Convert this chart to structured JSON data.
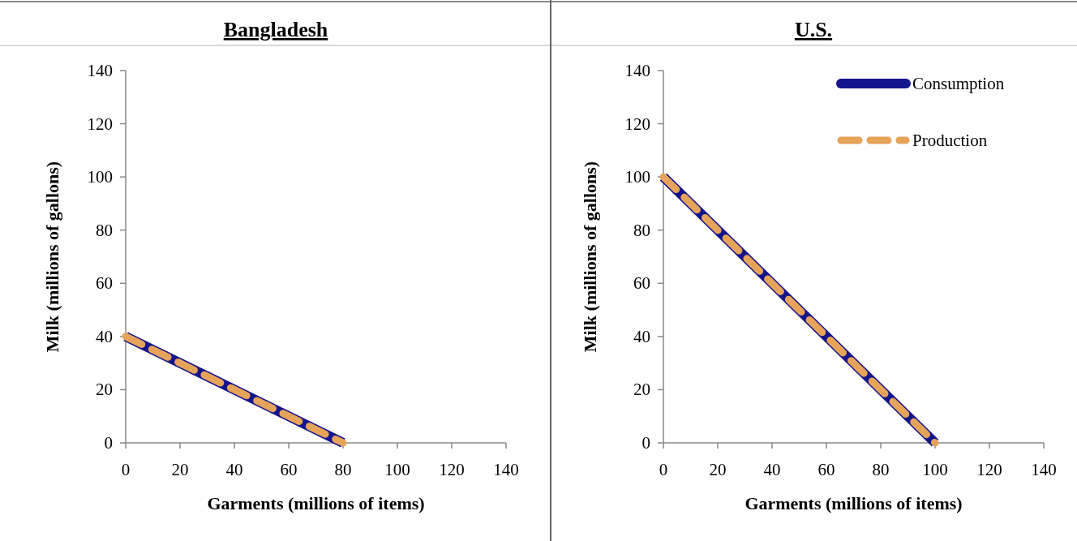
{
  "chart_data": [
    {
      "type": "line",
      "title": "Bangladesh",
      "xlabel": "Garments (millions of items)",
      "ylabel": "Milk (millions of gallons)",
      "xlim": [
        0,
        140
      ],
      "xticks": [
        0,
        20,
        40,
        60,
        80,
        100,
        120,
        140
      ],
      "ylim": [
        0,
        140
      ],
      "yticks": [
        0,
        20,
        40,
        60,
        80,
        100,
        120,
        140
      ],
      "grid": false,
      "legend": false,
      "marker": "none",
      "series": [
        {
          "color": "#14148c",
          "line_style": "solid",
          "x": [
            0,
            80
          ],
          "values": [
            40,
            0
          ]
        },
        {
          "color": "#e6a35a",
          "line_style": "dashed",
          "x": [
            0,
            80
          ],
          "values": [
            40,
            0
          ]
        }
      ]
    },
    {
      "type": "line",
      "title": "U.S.",
      "xlabel": "Garments (millions of items)",
      "ylabel": "Milk (millions of gallons)",
      "xlim": [
        0,
        140
      ],
      "xticks": [
        0,
        20,
        40,
        60,
        80,
        100,
        120,
        140
      ],
      "ylim": [
        0,
        140
      ],
      "yticks": [
        0,
        20,
        40,
        60,
        80,
        100,
        120,
        140
      ],
      "grid": false,
      "legend": "top right",
      "marker": "none",
      "series": [
        {
          "name": "Consumption",
          "color": "#14148c",
          "line_style": "solid",
          "x": [
            0,
            100
          ],
          "values": [
            100,
            0
          ]
        },
        {
          "name": "Production",
          "color": "#e6a35a",
          "line_style": "dashed",
          "x": [
            0,
            100
          ],
          "values": [
            100,
            0
          ]
        }
      ]
    }
  ]
}
